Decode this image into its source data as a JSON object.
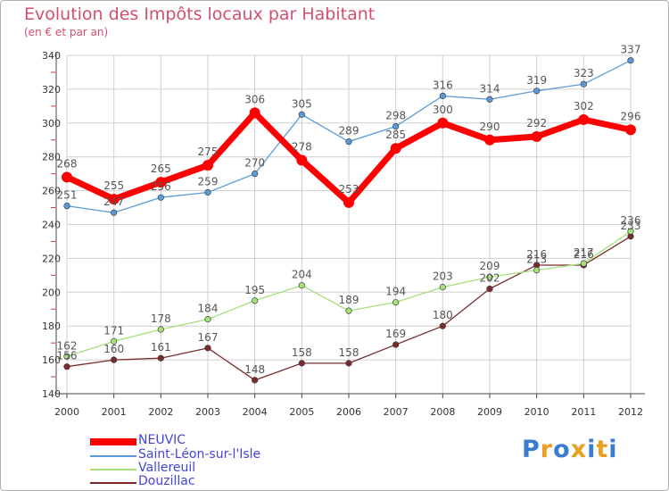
{
  "title": "Evolution des Impôts locaux par Habitant",
  "subtitle": "(en € et par an)",
  "logo": "Proxiti",
  "colors": {
    "title": "#d0506e",
    "legend_text": "#4444dd",
    "grid": "#cfcfcf",
    "axis": "#444444"
  },
  "chart_data": {
    "type": "line",
    "title": "Evolution des Impôts locaux par Habitant",
    "subtitle": "(en € et par an)",
    "xlabel": "",
    "ylabel": "",
    "x": [
      "2000",
      "2001",
      "2002",
      "2003",
      "2004",
      "2005",
      "2006",
      "2007",
      "2008",
      "2009",
      "2010",
      "2011",
      "2012"
    ],
    "ylim": [
      140,
      340
    ],
    "yticks": [
      140,
      160,
      180,
      200,
      220,
      240,
      260,
      280,
      300,
      320,
      340
    ],
    "grid": true,
    "legend_position": "bottom-left",
    "series": [
      {
        "name": "NEUVIC",
        "color": "#ff0000",
        "values": [
          268,
          255,
          265,
          275,
          306,
          278,
          253,
          285,
          300,
          290,
          292,
          302,
          296
        ],
        "labels": [
          "268",
          "255",
          "265",
          "275",
          "306",
          "278",
          "253",
          "285",
          "300",
          "290",
          "292",
          "302",
          "296"
        ]
      },
      {
        "name": "Saint-Léon-sur-l'Isle",
        "color": "#5b9bd5",
        "values": [
          251,
          247,
          256,
          259,
          270,
          305,
          289,
          298,
          316,
          314,
          319,
          323,
          337
        ],
        "labels": [
          "251",
          "247",
          "256",
          "259",
          "270",
          "305",
          "289",
          "298",
          "316",
          "314",
          "319",
          "323",
          "337"
        ]
      },
      {
        "name": "Vallereuil",
        "color": "#a5e07a",
        "values": [
          162,
          171,
          178,
          184,
          195,
          204,
          189,
          194,
          203,
          209,
          213,
          217,
          236
        ],
        "labels": [
          "162",
          "171",
          "178",
          "184",
          "195",
          "204",
          "189",
          "194",
          "203",
          "209",
          "213",
          "217",
          "236"
        ]
      },
      {
        "name": "Douzillac",
        "color": "#7a2c2c",
        "values": [
          156,
          160,
          161,
          167,
          148,
          158,
          158,
          169,
          180,
          202,
          216,
          216,
          233
        ],
        "labels": [
          "156",
          "160",
          "161",
          "167",
          "148",
          "158",
          "158",
          "169",
          "180",
          "202",
          "216",
          "216",
          "233"
        ]
      }
    ]
  }
}
